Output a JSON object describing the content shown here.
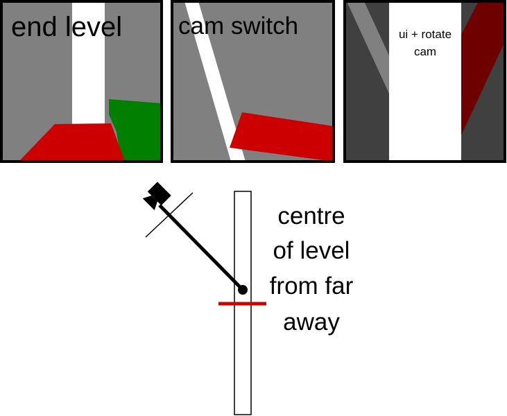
{
  "panels": [
    {
      "label": "end level"
    },
    {
      "label": "cam switch"
    },
    {
      "label_line1": "ui + rotate",
      "label_line2": "cam"
    }
  ],
  "annotation": {
    "line1": "centre",
    "line2": "of level",
    "line3": "from far",
    "line4": "away"
  },
  "colors": {
    "frame": "#000000",
    "panel_gray": "#808080",
    "dark_gray": "#404040",
    "white": "#ffffff",
    "red": "#cc0000",
    "dark_red": "#6e0000",
    "green": "#007f00",
    "marker_red": "#cc0000"
  }
}
